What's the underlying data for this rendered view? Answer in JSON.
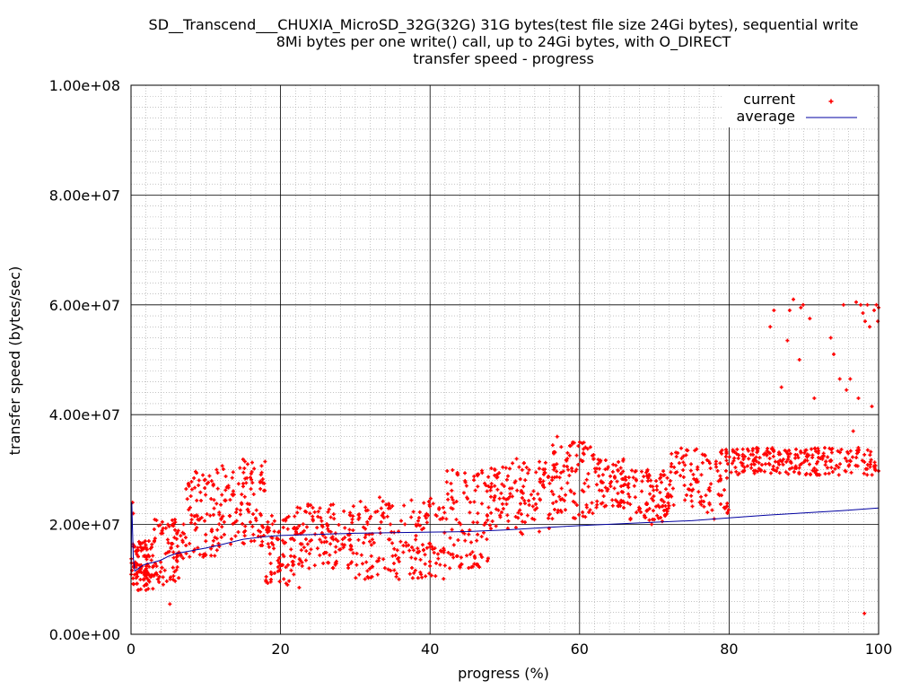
{
  "chart_data": {
    "type": "scatter",
    "title_lines": [
      "SD__Transcend___CHUXIA_MicroSD_32G(32G) 31G bytes(test file size 24Gi bytes), sequential write",
      "8Mi bytes per one write() call, up to 24Gi bytes, with O_DIRECT",
      "transfer speed - progress"
    ],
    "xlabel": "progress (%)",
    "ylabel": "transfer speed (bytes/sec)",
    "xlim": [
      0,
      100
    ],
    "ylim": [
      0,
      100000000
    ],
    "x_ticks": [
      0,
      20,
      40,
      60,
      80,
      100
    ],
    "x_tick_labels": [
      "0",
      "20",
      "40",
      "60",
      "80",
      "100"
    ],
    "y_ticks": [
      0,
      20000000,
      40000000,
      60000000,
      80000000,
      100000000
    ],
    "y_tick_labels": [
      "0.00e+00",
      "2.00e+07",
      "4.00e+07",
      "6.00e+07",
      "8.00e+07",
      "1.00e+08"
    ],
    "grid": true,
    "legend_position": "top-right",
    "series": [
      {
        "name": "current",
        "style": "points",
        "color": "#ff0000",
        "bands": [
          {
            "x_range": [
              0,
              3
            ],
            "y_range": [
              8000000,
              17000000
            ],
            "count": 110
          },
          {
            "x_range": [
              3,
              7
            ],
            "y_range": [
              9000000,
              21000000
            ],
            "count": 80
          },
          {
            "x_range": [
              7,
              12
            ],
            "y_range": [
              14000000,
              30000000
            ],
            "count": 90
          },
          {
            "x_range": [
              12,
              18
            ],
            "y_range": [
              16000000,
              32000000
            ],
            "count": 110
          },
          {
            "x_range": [
              18,
              22
            ],
            "y_range": [
              9000000,
              22000000
            ],
            "count": 80
          },
          {
            "x_range": [
              22,
              30
            ],
            "y_range": [
              12000000,
              24000000
            ],
            "count": 130
          },
          {
            "x_range": [
              30,
              42
            ],
            "y_range": [
              10000000,
              25000000
            ],
            "count": 180
          },
          {
            "x_range": [
              42,
              48
            ],
            "y_range": [
              12000000,
              30000000
            ],
            "count": 100
          },
          {
            "x_range": [
              48,
              56
            ],
            "y_range": [
              18000000,
              32000000
            ],
            "count": 120
          },
          {
            "x_range": [
              56,
              62
            ],
            "y_range": [
              21000000,
              35000000
            ],
            "count": 100
          },
          {
            "x_range": [
              62,
              66
            ],
            "y_range": [
              23000000,
              32000000
            ],
            "count": 70
          },
          {
            "x_range": [
              66,
              72
            ],
            "y_range": [
              20000000,
              30000000
            ],
            "count": 100
          },
          {
            "x_range": [
              72,
              80
            ],
            "y_range": [
              22000000,
              34000000
            ],
            "count": 110
          },
          {
            "x_range": [
              80,
              100
            ],
            "y_range": [
              29000000,
              34000000
            ],
            "count": 240
          }
        ],
        "extra_points": [
          [
            0.2,
            24000000
          ],
          [
            0.3,
            22000000
          ],
          [
            5.2,
            5500000
          ],
          [
            6.1,
            13500000
          ],
          [
            22.5,
            8500000
          ],
          [
            57,
            36000000
          ],
          [
            78,
            21000000
          ],
          [
            85.5,
            56000000
          ],
          [
            86,
            59000000
          ],
          [
            87,
            45000000
          ],
          [
            87.8,
            53500000
          ],
          [
            88.1,
            59000000
          ],
          [
            88.6,
            61000000
          ],
          [
            89.4,
            50000000
          ],
          [
            89.6,
            59500000
          ],
          [
            89.9,
            60000000
          ],
          [
            90.8,
            57500000
          ],
          [
            91.4,
            43000000
          ],
          [
            93.6,
            54000000
          ],
          [
            94,
            51000000
          ],
          [
            94.8,
            46500000
          ],
          [
            95.3,
            60000000
          ],
          [
            95.7,
            44500000
          ],
          [
            96.2,
            46500000
          ],
          [
            96.6,
            37000000
          ],
          [
            97,
            60500000
          ],
          [
            97.3,
            43000000
          ],
          [
            97.6,
            60000000
          ],
          [
            97.9,
            58500000
          ],
          [
            98.2,
            57000000
          ],
          [
            98.5,
            60000000
          ],
          [
            98.1,
            3800000
          ],
          [
            98.8,
            56000000
          ],
          [
            99.1,
            41500000
          ],
          [
            99.4,
            59000000
          ],
          [
            99.7,
            60000000
          ],
          [
            99.9,
            57000000
          ],
          [
            100,
            59500000
          ]
        ]
      },
      {
        "name": "average",
        "style": "line",
        "color": "#0000a0",
        "x": [
          0,
          0.1,
          0.3,
          0.5,
          1,
          1.5,
          2,
          3,
          4,
          5,
          6,
          8,
          10,
          12,
          15,
          18,
          20,
          25,
          30,
          35,
          40,
          45,
          50,
          55,
          60,
          65,
          70,
          75,
          80,
          85,
          90,
          95,
          100
        ],
        "y": [
          10000000,
          24000000,
          14000000,
          11500000,
          12000000,
          12500000,
          12800000,
          13100000,
          13500000,
          14200000,
          14700000,
          15200000,
          15700000,
          16300000,
          17300000,
          17800000,
          18000000,
          18200000,
          18400000,
          18500000,
          18600000,
          18700000,
          19000000,
          19400000,
          19800000,
          20100000,
          20400000,
          20700000,
          21200000,
          21700000,
          22100000,
          22500000,
          23000000
        ]
      }
    ]
  }
}
